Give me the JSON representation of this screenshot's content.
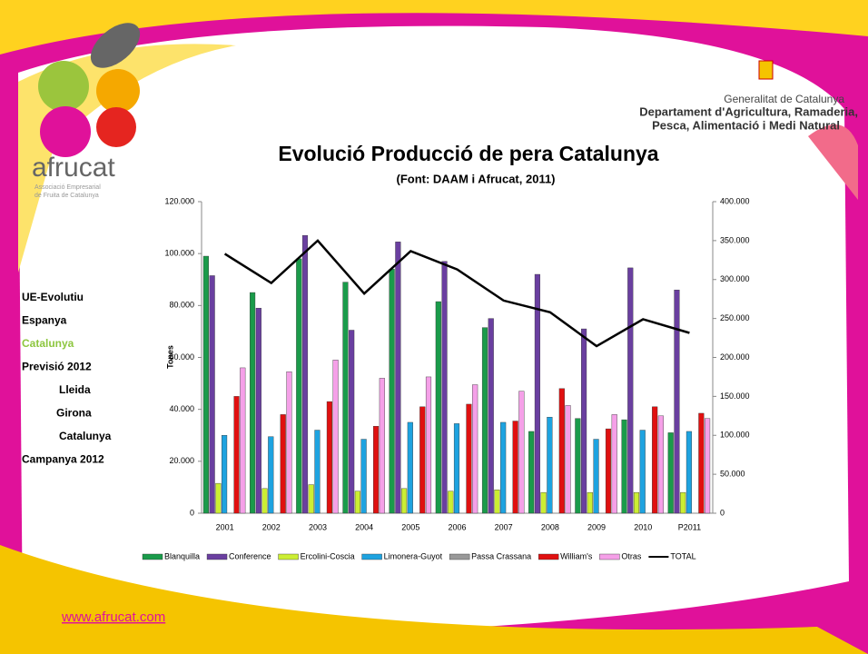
{
  "logo": {
    "name": "afrucat",
    "subtitle_lines": [
      "Associació Empresarial",
      "de Fruita de Catalunya"
    ]
  },
  "header": {
    "lines": [
      "Generalitat de Catalunya",
      "Departament d'Agricultura, Ramaderia,",
      "Pesca, Alimentació i Medi Natural"
    ]
  },
  "sidebar": [
    "UE-Evolutiu",
    "Espanya",
    "Catalunya",
    "Previsió 2012",
    "Lleida",
    "Girona",
    "Catalunya",
    "Campanya 2012"
  ],
  "url": "www.afrucat.com",
  "chart_data": {
    "type": "bar",
    "title": "Evolució Producció de pera Catalunya",
    "subtitle": "(Font: DAAM i Afrucat, 2011)",
    "y_label": "Tones",
    "grid": false,
    "legend": "bottom",
    "categories": [
      "2001",
      "2002",
      "2003",
      "2004",
      "2005",
      "2006",
      "2007",
      "2008",
      "2009",
      "2010",
      "P2011"
    ],
    "ylim": [
      0,
      120000
    ],
    "yticks": [
      0,
      {
        "value": 20000,
        "label": "20.000"
      },
      {
        "value": 40000,
        "label": "40.000"
      },
      {
        "value": 60000,
        "label": "60.000"
      },
      {
        "value": 80000,
        "label": "80.000"
      },
      {
        "value": 100000,
        "label": "100.000"
      },
      {
        "value": 120000,
        "label": "120.000"
      }
    ],
    "y2lim": [
      0,
      400000
    ],
    "y2ticks": [
      0,
      {
        "value": 50000,
        "label": "50.000"
      },
      {
        "value": 100000,
        "label": "100.000"
      },
      {
        "value": 150000,
        "label": "150.000"
      },
      {
        "value": 200000,
        "label": "200.000"
      },
      {
        "value": 250000,
        "label": "250.000"
      },
      {
        "value": 300000,
        "label": "300.000"
      },
      {
        "value": 350000,
        "label": "350.000"
      },
      {
        "value": 400000,
        "label": "400.000"
      }
    ],
    "series": [
      {
        "name": "Blanquilla",
        "color": "#1a9b4a",
        "values": [
          99000,
          85000,
          98000,
          89000,
          94000,
          81500,
          71500,
          31500,
          36500,
          36000,
          31000
        ]
      },
      {
        "name": "Conference",
        "color": "#6a3fa0",
        "values": [
          91500,
          79000,
          107000,
          70500,
          104500,
          97000,
          75000,
          92000,
          71000,
          94500,
          86000
        ]
      },
      {
        "name": "Ercolini-Coscia",
        "color": "#ccee33",
        "values": [
          11500,
          9500,
          11000,
          8500,
          9500,
          8500,
          9000,
          8000,
          8000,
          8000,
          8000
        ]
      },
      {
        "name": "Limonera-Guyot",
        "color": "#1ea3e0",
        "values": [
          30000,
          29500,
          32000,
          28500,
          35000,
          34500,
          35000,
          37000,
          28500,
          32000,
          31500
        ]
      },
      {
        "name": "Passa Crassana",
        "color": "#999999",
        "values": [
          0,
          0,
          0,
          0,
          0,
          0,
          0,
          0,
          0,
          0,
          0
        ]
      },
      {
        "name": "William's",
        "color": "#e01010",
        "values": [
          45000,
          38000,
          43000,
          33500,
          41000,
          42000,
          35500,
          48000,
          32500,
          41000,
          38500
        ]
      },
      {
        "name": "Otras",
        "color": "#f5a0e8",
        "values": [
          56000,
          54500,
          59000,
          52000,
          52500,
          49500,
          47000,
          41500,
          38000,
          37500,
          36500
        ]
      },
      {
        "name": "TOTAL",
        "color": "#000000",
        "type": "line",
        "axis": "y2",
        "values": [
          333000,
          295500,
          350000,
          282000,
          336500,
          313000,
          273000,
          258000,
          214500,
          249000,
          231500
        ]
      }
    ]
  }
}
